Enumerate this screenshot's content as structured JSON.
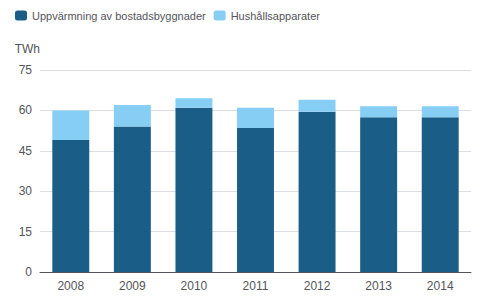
{
  "chart_data": {
    "type": "bar",
    "stacked": true,
    "categories": [
      "2008",
      "2009",
      "2010",
      "2011",
      "2012",
      "2013",
      "2014"
    ],
    "series": [
      {
        "name": "Uppvärmning av bostadsbyggnader",
        "color": "#1a5e87",
        "values": [
          49.0,
          54.0,
          61.0,
          53.5,
          59.5,
          57.5,
          57.5
        ]
      },
      {
        "name": "Hushållsapparater",
        "color": "#87cef5",
        "values": [
          11.0,
          8.0,
          3.5,
          7.5,
          4.5,
          4.0,
          4.0
        ]
      }
    ],
    "ylabel": "TWh",
    "ylim": [
      0,
      75
    ],
    "yticks": [
      0,
      15,
      30,
      45,
      60,
      75
    ],
    "grid": true,
    "legend": "upper left"
  }
}
